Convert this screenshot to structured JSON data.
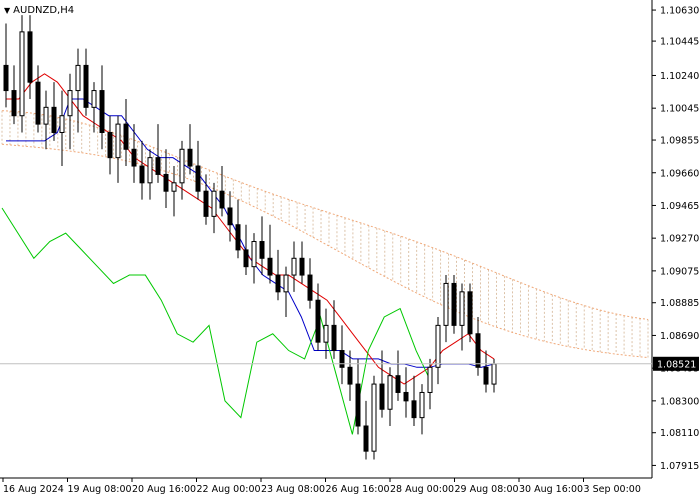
{
  "window": {
    "symbol_timeframe": "AUDNZD,H4"
  },
  "colors": {
    "background": "#ffffff",
    "bull_candle": "#ffffff",
    "bear_candle": "#000000",
    "candle_outline": "#000000",
    "tenkan": "#e00000",
    "kijun": "#0000c8",
    "chikou": "#00c800",
    "kumo_edge": "#f0a878",
    "kumo_fill": "#c9a27a",
    "current_price_box": "#000000",
    "current_price_text": "#ffffff"
  },
  "chart_data": {
    "type": "candlestick",
    "indicator": "Ichimoku Kinko Hyo",
    "y_ticks": [
      "1.10630",
      "1.10445",
      "1.10240",
      "1.10045",
      "1.09855",
      "1.09660",
      "1.09465",
      "1.09270",
      "1.09075",
      "1.08885",
      "1.08690",
      "1.08495",
      "1.08300",
      "1.08110",
      "1.07915"
    ],
    "ylim": [
      1.0784,
      1.1069
    ],
    "current_price": "1.08521",
    "x_labels": [
      "16 Aug 2024",
      "19 Aug 08:00",
      "20 Aug 16:00",
      "22 Aug 00:00",
      "23 Aug 08:00",
      "26 Aug 16:00",
      "28 Aug 00:00",
      "29 Aug 08:00",
      "30 Aug 16:00",
      "3 Sep 00:00"
    ],
    "candles": [
      [
        1.103,
        1.1055,
        1.1005,
        1.1015
      ],
      [
        1.1015,
        1.103,
        1.0995,
        1.1
      ],
      [
        1.1,
        1.106,
        1.099,
        1.105
      ],
      [
        1.105,
        1.106,
        1.101,
        1.102
      ],
      [
        1.102,
        1.103,
        1.099,
        1.0995
      ],
      [
        1.0995,
        1.1015,
        1.098,
        1.1005
      ],
      [
        1.1005,
        1.102,
        1.0985,
        1.099
      ],
      [
        1.099,
        1.1015,
        1.097,
        1.1
      ],
      [
        1.1,
        1.1025,
        1.098,
        1.1015
      ],
      [
        1.1015,
        1.104,
        1.099,
        1.103
      ],
      [
        1.103,
        1.104,
        1.1,
        1.1005
      ],
      [
        1.1005,
        1.102,
        1.099,
        1.1015
      ],
      [
        1.1015,
        1.103,
        1.098,
        1.099
      ],
      [
        1.099,
        1.1,
        1.0965,
        1.0975
      ],
      [
        1.0975,
        1.1,
        1.096,
        1.0995
      ],
      [
        1.0995,
        1.101,
        1.097,
        1.098
      ],
      [
        1.098,
        1.0995,
        1.096,
        1.097
      ],
      [
        1.097,
        1.0985,
        1.095,
        1.096
      ],
      [
        1.096,
        1.098,
        1.095,
        1.0975
      ],
      [
        1.0975,
        1.0995,
        1.096,
        1.0965
      ],
      [
        1.0965,
        1.098,
        1.0945,
        1.0955
      ],
      [
        1.0955,
        1.097,
        1.094,
        1.096
      ],
      [
        1.096,
        1.0985,
        1.095,
        1.098
      ],
      [
        1.098,
        1.0995,
        1.0965,
        1.097
      ],
      [
        1.097,
        1.0985,
        1.095,
        1.0955
      ],
      [
        1.0955,
        1.0965,
        1.0935,
        1.094
      ],
      [
        1.094,
        1.096,
        1.093,
        1.0955
      ],
      [
        1.0955,
        1.097,
        1.094,
        1.0945
      ],
      [
        1.0945,
        1.0955,
        1.0925,
        1.0935
      ],
      [
        1.0935,
        1.095,
        1.0915,
        1.092
      ],
      [
        1.092,
        1.0935,
        1.0905,
        1.091
      ],
      [
        1.091,
        1.093,
        1.09,
        1.0925
      ],
      [
        1.0925,
        1.094,
        1.0905,
        1.0915
      ],
      [
        1.0915,
        1.0935,
        1.09,
        1.0905
      ],
      [
        1.0905,
        1.092,
        1.089,
        1.0895
      ],
      [
        1.0895,
        1.091,
        1.088,
        1.0905
      ],
      [
        1.0905,
        1.0925,
        1.0895,
        1.0915
      ],
      [
        1.0915,
        1.0925,
        1.09,
        1.0905
      ],
      [
        1.0905,
        1.0915,
        1.0885,
        1.089
      ],
      [
        1.089,
        1.09,
        1.086,
        1.0865
      ],
      [
        1.0865,
        1.0885,
        1.0855,
        1.0875
      ],
      [
        1.0875,
        1.089,
        1.0855,
        1.086
      ],
      [
        1.086,
        1.0875,
        1.084,
        1.085
      ],
      [
        1.085,
        1.086,
        1.083,
        1.084
      ],
      [
        1.084,
        1.0855,
        1.081,
        1.0815
      ],
      [
        1.0815,
        1.083,
        1.0795,
        1.08
      ],
      [
        1.08,
        1.0845,
        1.0795,
        1.084
      ],
      [
        1.084,
        1.086,
        1.082,
        1.0825
      ],
      [
        1.0825,
        1.085,
        1.0815,
        1.0845
      ],
      [
        1.0845,
        1.086,
        1.083,
        1.0835
      ],
      [
        1.0835,
        1.085,
        1.082,
        1.083
      ],
      [
        1.083,
        1.0845,
        1.0815,
        1.082
      ],
      [
        1.082,
        1.084,
        1.081,
        1.0835
      ],
      [
        1.0835,
        1.0855,
        1.0825,
        1.085
      ],
      [
        1.085,
        1.088,
        1.084,
        1.0875
      ],
      [
        1.0875,
        1.0905,
        1.0865,
        1.09
      ],
      [
        1.09,
        1.0905,
        1.087,
        1.0875
      ],
      [
        1.0875,
        1.09,
        1.086,
        1.0895
      ],
      [
        1.0895,
        1.09,
        1.0865,
        1.087
      ],
      [
        1.087,
        1.088,
        1.0845,
        1.085
      ],
      [
        1.085,
        1.086,
        1.0835,
        1.084
      ],
      [
        1.084,
        1.0855,
        1.0835,
        1.0852
      ]
    ],
    "tenkan": [
      1.101,
      1.101,
      1.102,
      1.1025,
      1.102,
      1.101,
      1.1,
      1.0995,
      1.099,
      1.0985,
      1.0975,
      1.097,
      1.0965,
      1.096,
      1.0955,
      1.095,
      1.0945,
      1.0935,
      1.0925,
      1.0915,
      1.091,
      1.0905,
      1.0905,
      1.09,
      1.0895,
      1.089,
      1.088,
      1.087,
      1.086,
      1.085,
      1.0845,
      1.084,
      1.0845,
      1.085,
      1.086,
      1.0865,
      1.087,
      1.086,
      1.0855
    ],
    "kijun": [
      1.0985,
      1.0985,
      1.0985,
      1.0985,
      1.099,
      1.101,
      1.101,
      1.1005,
      1.1,
      1.1,
      1.099,
      1.098,
      1.0975,
      1.0975,
      1.097,
      1.0965,
      1.0955,
      1.0945,
      1.093,
      1.0915,
      1.0905,
      1.09,
      1.0895,
      1.088,
      1.086,
      1.086,
      1.086,
      1.0855,
      1.0855,
      1.0855,
      1.0852,
      1.0852,
      1.085,
      1.085,
      1.0852,
      1.0852,
      1.0852,
      1.085,
      1.0852
    ],
    "chikou": [
      1.0945,
      1.093,
      1.0915,
      1.0925,
      1.093,
      1.092,
      1.091,
      1.09,
      1.0905,
      1.0905,
      1.089,
      1.087,
      1.0865,
      1.0875,
      1.083,
      1.082,
      1.0865,
      1.087,
      1.086,
      1.0855,
      1.088,
      1.0845,
      1.081,
      1.086,
      1.088,
      1.0885,
      1.086,
      1.084
    ]
  }
}
